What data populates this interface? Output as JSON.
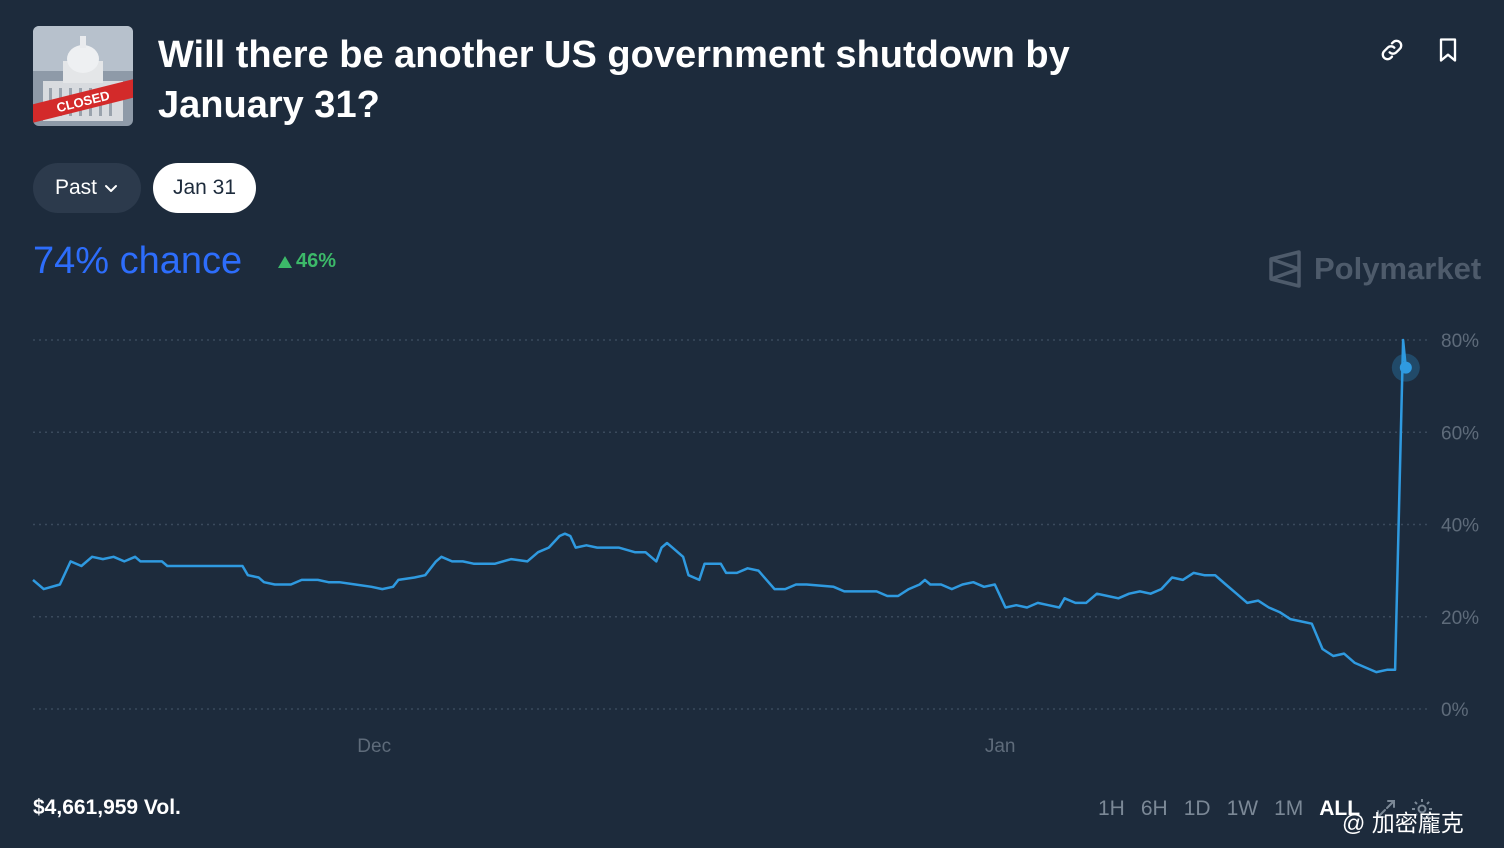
{
  "header": {
    "title": "Will there be another US government shutdown by January 31?",
    "thumbnail_text": "CLOSED",
    "link_icon": "link-icon",
    "bookmark_icon": "bookmark-icon"
  },
  "filters": {
    "past_label": "Past",
    "date_label": "Jan 31"
  },
  "summary": {
    "chance": "74% chance",
    "delta": "46%",
    "delta_color": "#3cb969",
    "accent_color": "#2d6dfb"
  },
  "brand": {
    "name": "Polymarket"
  },
  "chart_data": {
    "type": "line",
    "title": "",
    "xlabel": "",
    "ylabel": "",
    "ylim": [
      0,
      80
    ],
    "yticks": [
      "80%",
      "60%",
      "40%",
      "20%",
      "0%"
    ],
    "xticks": [
      "Dec",
      "Jan"
    ],
    "grid": true,
    "series": [
      {
        "color": "#2f9ae0",
        "points": [
          [
            0,
            28
          ],
          [
            2,
            26
          ],
          [
            5,
            27
          ],
          [
            7,
            32
          ],
          [
            9,
            31
          ],
          [
            11,
            33
          ],
          [
            13,
            32.5
          ],
          [
            15,
            33
          ],
          [
            17,
            32
          ],
          [
            19,
            33
          ],
          [
            20,
            32
          ],
          [
            24,
            32
          ],
          [
            25,
            31
          ],
          [
            39,
            31
          ],
          [
            40,
            29
          ],
          [
            42,
            28.5
          ],
          [
            43,
            27.5
          ],
          [
            45,
            27
          ],
          [
            48,
            27
          ],
          [
            50,
            28
          ],
          [
            53,
            28
          ],
          [
            55,
            27.5
          ],
          [
            57,
            27.5
          ],
          [
            60,
            27
          ],
          [
            63,
            26.5
          ],
          [
            65,
            26
          ],
          [
            67,
            26.5
          ],
          [
            68,
            28
          ],
          [
            71,
            28.5
          ],
          [
            73,
            29
          ],
          [
            75,
            32
          ],
          [
            76,
            33
          ],
          [
            78,
            32
          ],
          [
            80,
            32
          ],
          [
            82,
            31.5
          ],
          [
            86,
            31.5
          ],
          [
            89,
            32.5
          ],
          [
            92,
            32
          ],
          [
            94,
            34
          ],
          [
            96,
            35
          ],
          [
            98,
            37.5
          ],
          [
            99,
            38
          ],
          [
            100,
            37.5
          ],
          [
            101,
            35
          ],
          [
            103,
            35.5
          ],
          [
            105,
            35
          ],
          [
            109,
            35
          ],
          [
            112,
            34
          ],
          [
            114,
            34
          ],
          [
            116,
            32
          ],
          [
            117,
            35
          ],
          [
            118,
            36
          ],
          [
            119,
            35
          ],
          [
            121,
            33
          ],
          [
            122,
            29
          ],
          [
            124,
            28
          ],
          [
            125,
            31.5
          ],
          [
            128,
            31.5
          ],
          [
            129,
            29.5
          ],
          [
            131,
            29.5
          ],
          [
            133,
            30.5
          ],
          [
            135,
            30
          ],
          [
            138,
            26
          ],
          [
            140,
            26
          ],
          [
            142,
            27
          ],
          [
            144,
            27
          ],
          [
            149,
            26.5
          ],
          [
            151,
            25.5
          ],
          [
            157,
            25.5
          ],
          [
            159,
            24.5
          ],
          [
            161,
            24.5
          ],
          [
            163,
            26
          ],
          [
            165,
            27
          ],
          [
            166,
            28
          ],
          [
            167,
            27
          ],
          [
            169,
            27
          ],
          [
            171,
            26
          ],
          [
            173,
            27
          ],
          [
            175,
            27.5
          ],
          [
            177,
            26.5
          ],
          [
            179,
            27
          ],
          [
            181,
            22
          ],
          [
            183,
            22.5
          ],
          [
            185,
            22
          ],
          [
            187,
            23
          ],
          [
            189,
            22.5
          ],
          [
            191,
            22
          ],
          [
            192,
            24
          ],
          [
            194,
            23
          ],
          [
            196,
            23
          ],
          [
            198,
            25
          ],
          [
            200,
            24.5
          ],
          [
            202,
            24
          ],
          [
            204,
            25
          ],
          [
            206,
            25.5
          ],
          [
            208,
            25
          ],
          [
            210,
            26
          ],
          [
            212,
            28.5
          ],
          [
            214,
            28
          ],
          [
            216,
            29.5
          ],
          [
            218,
            29
          ],
          [
            220,
            29
          ],
          [
            222,
            27
          ],
          [
            224,
            25
          ],
          [
            226,
            23
          ],
          [
            228,
            23.5
          ],
          [
            230,
            22
          ],
          [
            232,
            21
          ],
          [
            234,
            19.5
          ],
          [
            236,
            19
          ],
          [
            238,
            18.5
          ],
          [
            240,
            13
          ],
          [
            242,
            11.5
          ],
          [
            244,
            12
          ],
          [
            246,
            10
          ],
          [
            248,
            9
          ],
          [
            250,
            8
          ],
          [
            252,
            8.5
          ],
          [
            253.5,
            8.5
          ],
          [
            255,
            80
          ],
          [
            255.5,
            74
          ]
        ]
      }
    ],
    "current_value": 74
  },
  "footer": {
    "volume": "$4,661,959 Vol.",
    "ranges": [
      "1H",
      "6H",
      "1D",
      "1W",
      "1M",
      "ALL"
    ],
    "active_range": "ALL"
  },
  "watermark": {
    "text": "@ 加密龐克"
  }
}
